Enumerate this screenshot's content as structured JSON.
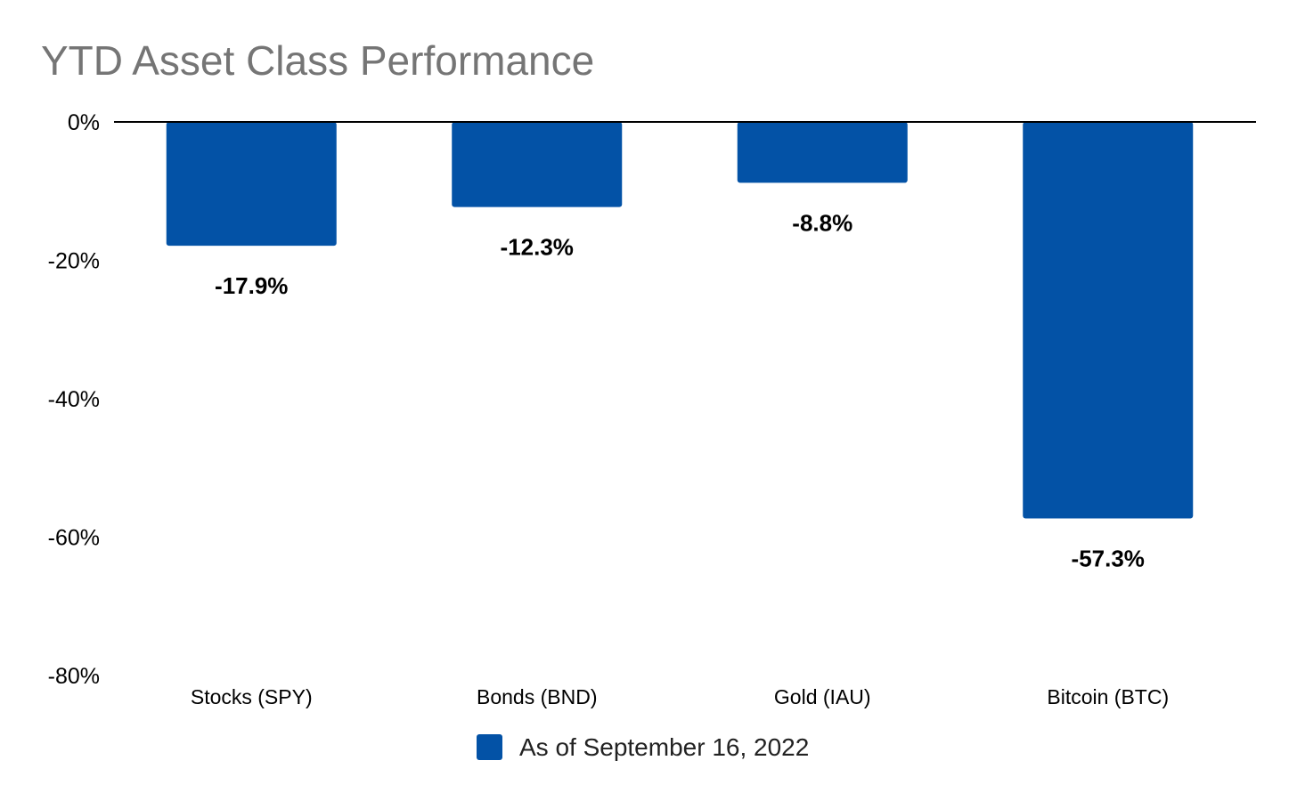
{
  "chart_data": {
    "type": "bar",
    "title": "YTD Asset Class Performance",
    "xlabel": "",
    "ylabel": "",
    "categories": [
      "Stocks (SPY)",
      "Bonds (BND)",
      "Gold (IAU)",
      "Bitcoin (BTC)"
    ],
    "series": [
      {
        "name": "As of September 16, 2022",
        "values": [
          -17.9,
          -12.3,
          -8.8,
          -57.3
        ],
        "color": "#0352a6"
      }
    ],
    "data_labels": [
      "-17.9%",
      "-12.3%",
      "-8.8%",
      "-57.3%"
    ],
    "ylim": [
      -80,
      0
    ],
    "yticks": [
      0,
      -20,
      -40,
      -60,
      -80
    ],
    "ytick_labels": [
      "0%",
      "-20%",
      "-40%",
      "-60%",
      "-80%"
    ],
    "grid": false,
    "legend_position": "bottom"
  }
}
